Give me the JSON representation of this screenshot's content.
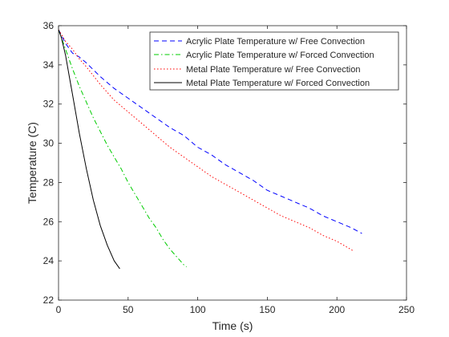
{
  "chart_data": {
    "type": "line",
    "title": "",
    "xlabel": "Time (s)",
    "ylabel": "Temperature (C)",
    "xlim": [
      0,
      250
    ],
    "ylim": [
      22,
      36
    ],
    "xticks": [
      0,
      50,
      100,
      150,
      200,
      250
    ],
    "yticks": [
      22,
      24,
      26,
      28,
      30,
      32,
      34,
      36
    ],
    "grid": false,
    "legend_position": "top-right",
    "series": [
      {
        "name": "Acrylic Plate Temperature w/ Free Convection",
        "color": "#0000ff",
        "dash": "dashed",
        "x": [
          0,
          5,
          10,
          15,
          20,
          30,
          40,
          50,
          60,
          70,
          80,
          90,
          100,
          110,
          120,
          130,
          140,
          150,
          160,
          170,
          180,
          190,
          200,
          210,
          218
        ],
        "y": [
          35.8,
          35.1,
          34.6,
          34.4,
          34.1,
          33.4,
          32.8,
          32.3,
          31.8,
          31.3,
          30.8,
          30.4,
          29.8,
          29.4,
          28.9,
          28.5,
          28.1,
          27.6,
          27.3,
          27.0,
          26.7,
          26.3,
          26.0,
          25.7,
          25.4
        ]
      },
      {
        "name": "Acrylic Plate Temperature w/ Forced Convection",
        "color": "#00cc00",
        "dash": "dashdot",
        "x": [
          0,
          5,
          10,
          15,
          20,
          25,
          30,
          35,
          40,
          45,
          50,
          55,
          60,
          65,
          70,
          75,
          80,
          85,
          90,
          92
        ],
        "y": [
          35.8,
          34.8,
          33.8,
          32.9,
          32.1,
          31.3,
          30.6,
          29.9,
          29.3,
          28.7,
          28.0,
          27.4,
          26.8,
          26.2,
          25.7,
          25.1,
          24.6,
          24.2,
          23.8,
          23.7
        ]
      },
      {
        "name": "Metal Plate Temperature w/ Free Convection",
        "color": "#ff0000",
        "dash": "dotted",
        "x": [
          0,
          5,
          10,
          15,
          20,
          30,
          40,
          50,
          60,
          70,
          80,
          90,
          100,
          110,
          120,
          130,
          140,
          150,
          160,
          170,
          180,
          190,
          200,
          212
        ],
        "y": [
          35.8,
          35.2,
          34.8,
          34.3,
          33.9,
          33.0,
          32.2,
          31.6,
          31.0,
          30.4,
          29.8,
          29.3,
          28.8,
          28.3,
          27.9,
          27.5,
          27.1,
          26.7,
          26.3,
          26.0,
          25.7,
          25.3,
          25.0,
          24.5
        ]
      },
      {
        "name": "Metal Plate Temperature w/ Forced Convection",
        "color": "#000000",
        "dash": "solid",
        "x": [
          0,
          2,
          5,
          8,
          10,
          15,
          20,
          25,
          30,
          35,
          40,
          44
        ],
        "y": [
          35.8,
          35.4,
          34.5,
          33.3,
          32.5,
          30.5,
          28.7,
          27.1,
          25.8,
          24.8,
          24.0,
          23.6
        ]
      }
    ]
  }
}
